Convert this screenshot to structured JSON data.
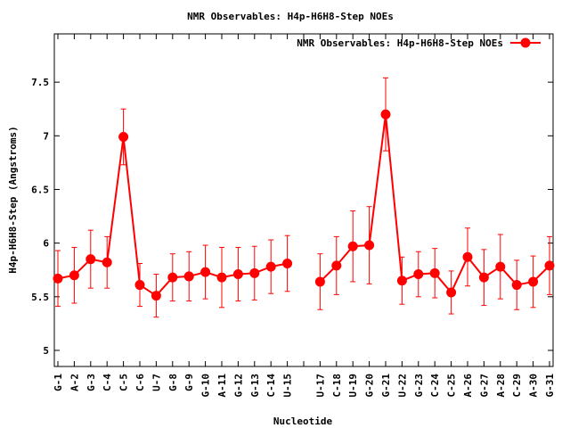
{
  "chart_data": {
    "type": "line",
    "title": "NMR Observables: H4p-H6H8-Step NOEs",
    "xlabel": "Nucleotide",
    "ylabel": "H4p-H6H8-Step (Angstroms)",
    "ylim": [
      4.85,
      7.95
    ],
    "yticks": [
      5,
      5.5,
      6,
      6.5,
      7,
      7.5
    ],
    "ytick_labels": [
      "5",
      "5.5",
      "6",
      "6.5",
      "7",
      "7.5"
    ],
    "grid": false,
    "legend": "top-right",
    "series_color": "#ff0000",
    "categories": [
      "G-1",
      "A-2",
      "G-3",
      "C-4",
      "C-5",
      "C-6",
      "U-7",
      "G-8",
      "G-9",
      "G-10",
      "A-11",
      "G-12",
      "G-13",
      "C-14",
      "U-15",
      "",
      "U-17",
      "C-18",
      "U-19",
      "G-20",
      "G-21",
      "U-22",
      "G-23",
      "C-24",
      "C-25",
      "A-26",
      "G-27",
      "A-28",
      "C-29",
      "A-30",
      "G-31"
    ],
    "series": [
      {
        "name": "NMR Observables: H4p-H6H8-Step NOEs",
        "values": [
          5.67,
          5.7,
          5.85,
          5.82,
          6.99,
          5.61,
          5.51,
          5.68,
          5.69,
          5.73,
          5.68,
          5.71,
          5.72,
          5.78,
          5.81,
          null,
          5.64,
          5.79,
          5.97,
          5.98,
          7.2,
          5.65,
          5.71,
          5.72,
          5.54,
          5.87,
          5.68,
          5.78,
          5.61,
          5.64,
          5.79
        ],
        "err": [
          0.26,
          0.26,
          0.27,
          0.24,
          0.26,
          0.2,
          0.2,
          0.22,
          0.23,
          0.25,
          0.28,
          0.25,
          0.25,
          0.25,
          0.26,
          null,
          0.26,
          0.27,
          0.33,
          0.36,
          0.34,
          0.22,
          0.21,
          0.23,
          0.2,
          0.27,
          0.26,
          0.3,
          0.23,
          0.24,
          0.27
        ]
      }
    ]
  }
}
